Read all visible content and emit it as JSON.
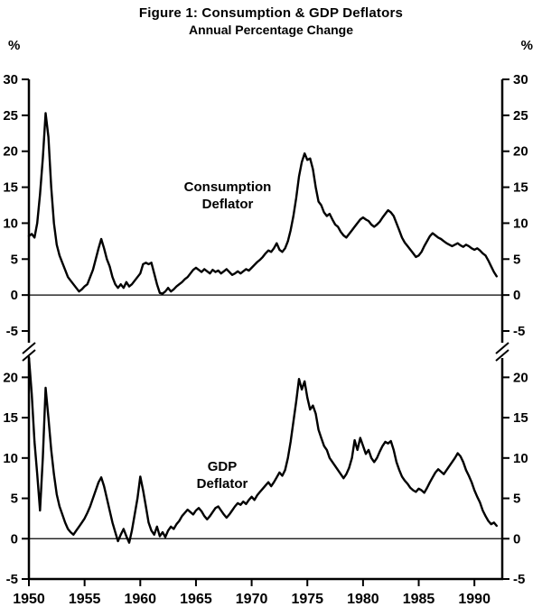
{
  "figure": {
    "title": "Figure 1: Consumption & GDP Deflators",
    "subtitle": "Annual Percentage Change",
    "percent_left": "%",
    "percent_right": "%",
    "line_color": "#000000"
  },
  "chart_data": [
    {
      "type": "line",
      "name": "Consumption Deflator",
      "label_lines": [
        "Consumption",
        "Deflator"
      ],
      "x_start": 1950,
      "x_step": 0.25,
      "x_range": [
        1950,
        1992.5
      ],
      "y_range": [
        -5,
        30
      ],
      "y_ticks": [
        30,
        25,
        20,
        15,
        10,
        5,
        0,
        -5
      ],
      "ylabel": "%",
      "grid": false,
      "values": [
        8.2,
        8.5,
        8.0,
        10.0,
        14.0,
        19.0,
        25.3,
        22.0,
        15.0,
        10.0,
        7.0,
        5.5,
        4.5,
        3.5,
        2.5,
        2.0,
        1.5,
        1.0,
        0.5,
        0.8,
        1.2,
        1.5,
        2.5,
        3.5,
        5.0,
        6.5,
        7.8,
        6.5,
        5.0,
        4.0,
        2.5,
        1.5,
        1.0,
        1.5,
        1.0,
        1.8,
        1.2,
        1.5,
        2.0,
        2.5,
        3.0,
        4.3,
        4.5,
        4.3,
        4.5,
        3.0,
        1.5,
        0.3,
        0.2,
        0.5,
        1.0,
        0.5,
        0.8,
        1.2,
        1.5,
        1.8,
        2.2,
        2.5,
        3.0,
        3.5,
        3.8,
        3.5,
        3.2,
        3.6,
        3.3,
        3.0,
        3.5,
        3.2,
        3.4,
        3.0,
        3.3,
        3.6,
        3.2,
        2.8,
        3.0,
        3.3,
        3.0,
        3.3,
        3.6,
        3.4,
        3.8,
        4.2,
        4.6,
        4.9,
        5.3,
        5.8,
        6.2,
        6.0,
        6.5,
        7.2,
        6.3,
        6.0,
        6.5,
        7.5,
        9.0,
        11.0,
        13.5,
        16.5,
        18.5,
        19.7,
        18.8,
        19.0,
        17.5,
        15.0,
        13.0,
        12.5,
        11.5,
        11.0,
        11.3,
        10.5,
        9.8,
        9.5,
        8.8,
        8.3,
        8.0,
        8.5,
        9.0,
        9.5,
        10.0,
        10.5,
        10.8,
        10.5,
        10.3,
        9.8,
        9.5,
        9.8,
        10.2,
        10.8,
        11.3,
        11.8,
        11.5,
        11.0,
        10.0,
        9.0,
        8.0,
        7.3,
        6.8,
        6.3,
        5.8,
        5.3,
        5.5,
        6.0,
        6.8,
        7.5,
        8.2,
        8.6,
        8.3,
        8.0,
        7.8,
        7.5,
        7.2,
        7.0,
        6.8,
        7.0,
        7.2,
        6.9,
        6.7,
        7.0,
        6.8,
        6.5,
        6.3,
        6.5,
        6.2,
        5.8,
        5.5,
        4.8,
        4.0,
        3.2,
        2.6
      ]
    },
    {
      "type": "line",
      "name": "GDP Deflator",
      "label_lines": [
        "GDP",
        "Deflator"
      ],
      "x_start": 1950,
      "x_step": 0.25,
      "x_range": [
        1950,
        1992.5
      ],
      "y_range": [
        -5,
        22.5
      ],
      "y_ticks": [
        20,
        15,
        10,
        5,
        0,
        -5
      ],
      "x_ticks": [
        1950,
        1955,
        1960,
        1965,
        1970,
        1975,
        1980,
        1985,
        1990
      ],
      "ylabel": "%",
      "grid": false,
      "y_axis_break_top": true,
      "values": [
        23.0,
        18.0,
        12.0,
        8.0,
        3.5,
        10.0,
        18.7,
        15.0,
        11.0,
        8.0,
        5.5,
        4.0,
        3.0,
        2.0,
        1.2,
        0.8,
        0.5,
        1.0,
        1.5,
        2.0,
        2.5,
        3.2,
        4.0,
        5.0,
        6.0,
        7.0,
        7.6,
        6.5,
        5.0,
        3.5,
        2.0,
        0.8,
        -0.3,
        0.5,
        1.2,
        0.3,
        -0.5,
        1.0,
        3.0,
        5.0,
        7.7,
        6.0,
        4.0,
        2.0,
        1.0,
        0.5,
        1.5,
        0.3,
        0.8,
        0.2,
        1.0,
        1.5,
        1.2,
        1.8,
        2.2,
        2.8,
        3.2,
        3.6,
        3.3,
        3.0,
        3.5,
        3.8,
        3.4,
        2.8,
        2.4,
        2.8,
        3.3,
        3.8,
        4.0,
        3.5,
        3.0,
        2.6,
        3.0,
        3.5,
        4.0,
        4.4,
        4.2,
        4.6,
        4.3,
        4.8,
        5.2,
        4.8,
        5.4,
        5.8,
        6.2,
        6.6,
        7.0,
        6.5,
        7.0,
        7.6,
        8.2,
        7.8,
        8.5,
        10.0,
        12.0,
        14.5,
        17.0,
        19.8,
        18.5,
        19.5,
        17.5,
        16.0,
        16.5,
        15.5,
        13.5,
        12.5,
        11.5,
        11.0,
        10.0,
        9.5,
        9.0,
        8.5,
        8.0,
        7.5,
        8.0,
        8.8,
        10.0,
        12.2,
        11.0,
        12.5,
        11.5,
        10.5,
        11.0,
        10.0,
        9.5,
        10.0,
        10.8,
        11.5,
        12.0,
        11.8,
        12.1,
        11.0,
        9.5,
        8.5,
        7.7,
        7.2,
        6.8,
        6.3,
        6.0,
        5.8,
        6.2,
        6.0,
        5.7,
        6.3,
        7.0,
        7.6,
        8.2,
        8.6,
        8.3,
        8.0,
        8.5,
        9.0,
        9.5,
        10.0,
        10.6,
        10.2,
        9.5,
        8.5,
        7.8,
        7.0,
        6.0,
        5.2,
        4.5,
        3.5,
        2.8,
        2.2,
        1.8,
        2.0,
        1.6
      ]
    }
  ]
}
